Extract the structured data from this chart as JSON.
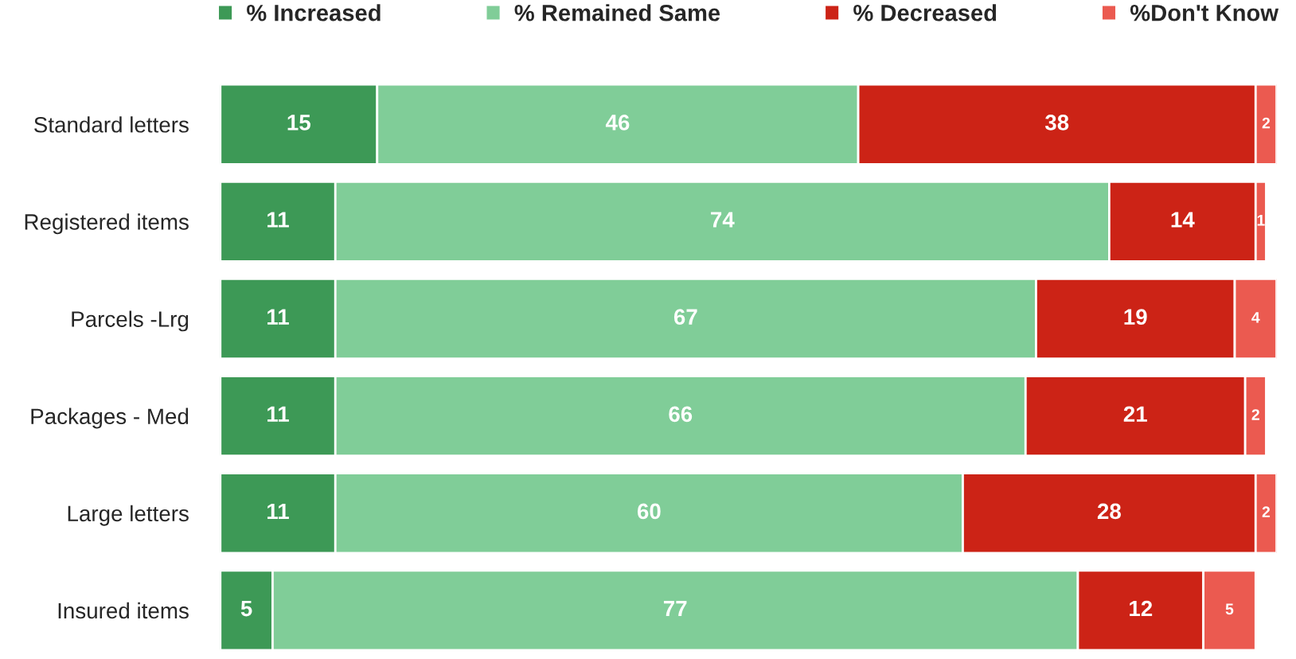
{
  "chart_data": {
    "type": "bar",
    "orientation": "horizontal",
    "stacked": true,
    "data_labels": true,
    "legend": "top",
    "grid": false,
    "categories": [
      "Standard letters",
      "Registered items",
      "Parcels -Lrg",
      "Packages - Med",
      "Large letters",
      "Insured items"
    ],
    "series": [
      {
        "name": "% Increased",
        "color": "#3d9956",
        "values": [
          15,
          11,
          11,
          11,
          11,
          5
        ]
      },
      {
        "name": "% Remained Same",
        "color": "#80cd98",
        "values": [
          46,
          74,
          67,
          66,
          60,
          77
        ]
      },
      {
        "name": "% Decreased",
        "color": "#cc2316",
        "values": [
          38,
          14,
          19,
          21,
          28,
          12
        ]
      },
      {
        "name": "%Don't Know",
        "color": "#eb5a50",
        "values": [
          2,
          1,
          4,
          2,
          2,
          5
        ]
      }
    ]
  }
}
